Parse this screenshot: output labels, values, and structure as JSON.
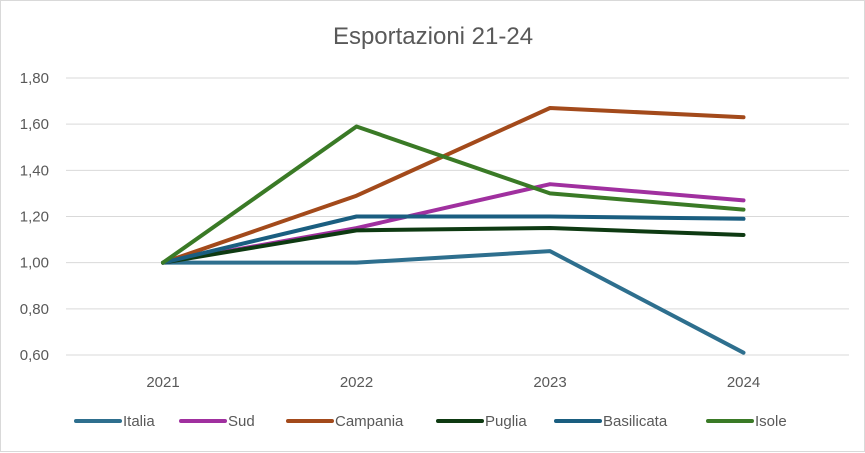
{
  "chart_data": {
    "type": "line",
    "title": "Esportazioni 21-24",
    "xlabel": "",
    "ylabel": "",
    "categories": [
      "2021",
      "2022",
      "2023",
      "2024"
    ],
    "ylim": [
      0.6,
      1.8
    ],
    "yticks": [
      "0,60",
      "0,80",
      "1,00",
      "1,20",
      "1,40",
      "1,60",
      "1,80"
    ],
    "ytick_values": [
      0.6,
      0.8,
      1.0,
      1.2,
      1.4,
      1.6,
      1.8
    ],
    "grid": true,
    "legend_position": "bottom",
    "series": [
      {
        "name": "Italia",
        "color": "#2e6f8e",
        "values": [
          1.0,
          1.0,
          1.05,
          0.61
        ]
      },
      {
        "name": "Sud",
        "color": "#a0309f",
        "values": [
          1.0,
          1.15,
          1.34,
          1.27
        ]
      },
      {
        "name": "Campania",
        "color": "#a34a1b",
        "values": [
          1.0,
          1.29,
          1.67,
          1.63
        ]
      },
      {
        "name": "Puglia",
        "color": "#0e3a12",
        "values": [
          1.0,
          1.14,
          1.15,
          1.12
        ]
      },
      {
        "name": "Basilicata",
        "color": "#1a5e80",
        "values": [
          1.0,
          1.2,
          1.2,
          1.19
        ]
      },
      {
        "name": "Isole",
        "color": "#3a7a26",
        "values": [
          1.0,
          1.59,
          1.3,
          1.23
        ]
      }
    ]
  }
}
